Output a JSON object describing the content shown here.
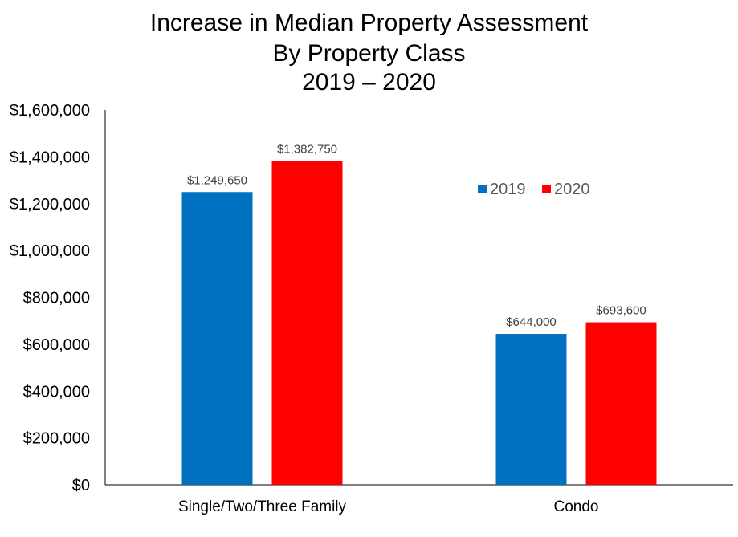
{
  "chart_data": {
    "type": "bar",
    "title_lines": [
      "Increase in Median Property Assessment",
      "By Property Class",
      "2019 – 2020"
    ],
    "categories": [
      "Single/Two/Three Family",
      "Condo"
    ],
    "series": [
      {
        "name": "2019",
        "color": "#0070C0",
        "values": [
          1249650,
          644000
        ],
        "labels": [
          "$1,249,650",
          "$644,000"
        ]
      },
      {
        "name": "2020",
        "color": "#FF0000",
        "values": [
          1382750,
          693600
        ],
        "labels": [
          "$1,382,750",
          "$693,600"
        ]
      }
    ],
    "ylim": [
      0,
      1600000
    ],
    "yticks": [
      0,
      200000,
      400000,
      600000,
      800000,
      1000000,
      1200000,
      1400000,
      1600000
    ],
    "ytick_labels": [
      "$0",
      "$200,000",
      "$400,000",
      "$600,000",
      "$800,000",
      "$1,000,000",
      "$1,200,000",
      "$1,400,000",
      "$1,600,000"
    ],
    "grid": false,
    "legend": "top-right",
    "xlabel": "",
    "ylabel": ""
  }
}
